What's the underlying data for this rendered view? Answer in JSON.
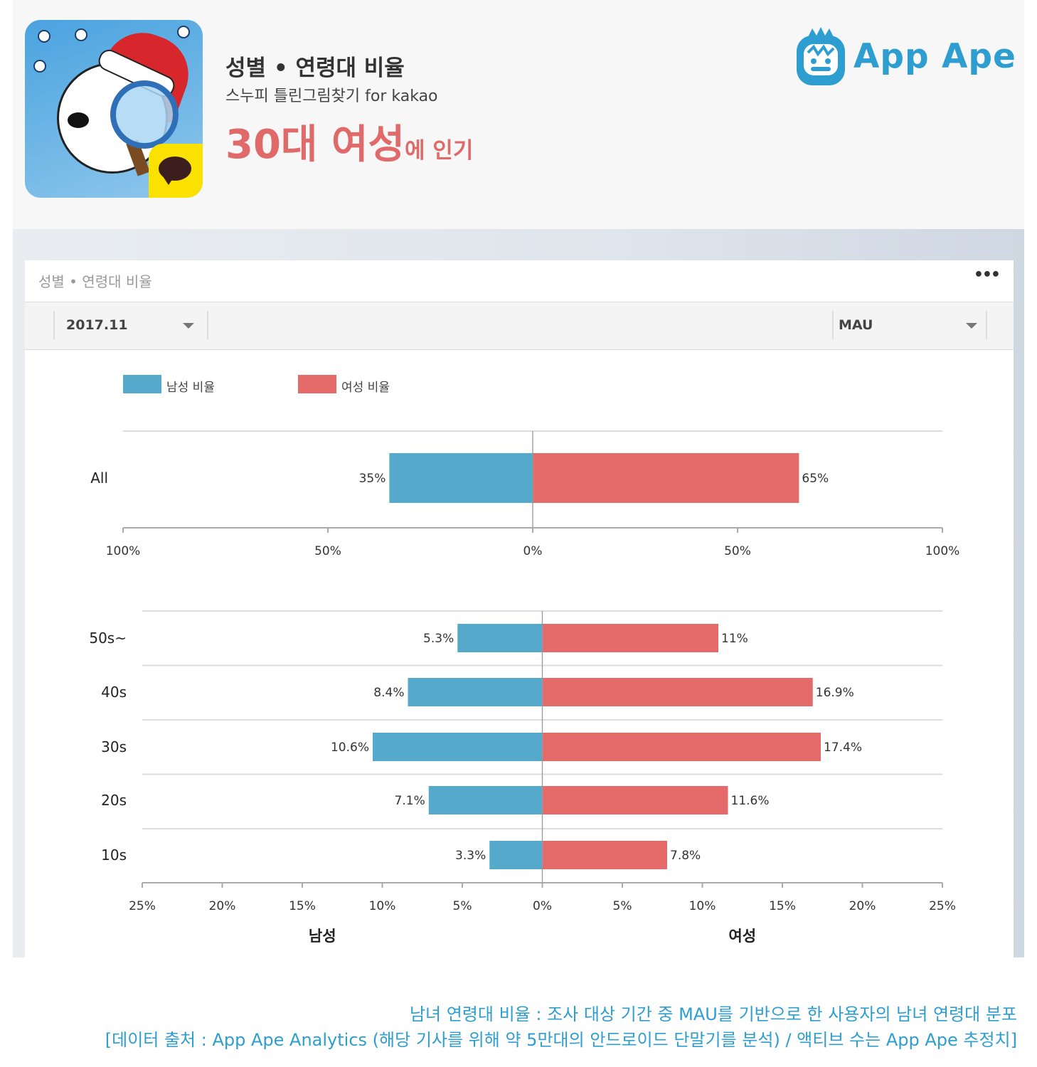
{
  "header": {
    "title": "성별 • 연령대 비율",
    "app_name": "스누피 틀린그림찾기 for kakao",
    "headline_main": "30대 여성",
    "headline_suffix": "에 인기",
    "logo_text": "App Ape"
  },
  "card": {
    "title": "성별 • 연령대 비율",
    "more": "•••",
    "period": "2017.11",
    "metric": "MAU"
  },
  "legend": {
    "male": "남성 비율",
    "female": "여성 비율"
  },
  "colors": {
    "male": "#55aacb",
    "female": "#e56b6b",
    "accent": "#2d9ecf",
    "headline": "#e06a6a"
  },
  "chart_data": [
    {
      "type": "bar",
      "orientation": "horizontal-diverging",
      "categories": [
        "All"
      ],
      "series": [
        {
          "name": "남성 비율",
          "values": [
            35
          ],
          "labels": [
            "35%"
          ]
        },
        {
          "name": "여성 비율",
          "values": [
            65
          ],
          "labels": [
            "65%"
          ]
        }
      ],
      "xlim": [
        -100,
        100
      ],
      "ticks": [
        -100,
        -50,
        0,
        50,
        100
      ],
      "tick_labels": [
        "100%",
        "50%",
        "0%",
        "50%",
        "100%"
      ],
      "legend": "top-left",
      "grid": true
    },
    {
      "type": "bar",
      "orientation": "horizontal-diverging",
      "categories": [
        "50s~",
        "40s",
        "30s",
        "20s",
        "10s"
      ],
      "series": [
        {
          "name": "남성 비율",
          "values": [
            5.3,
            8.4,
            10.6,
            7.1,
            3.3
          ],
          "labels": [
            "5.3%",
            "8.4%",
            "10.6%",
            "7.1%",
            "3.3%"
          ]
        },
        {
          "name": "여성 비율",
          "values": [
            11,
            16.9,
            17.4,
            11.6,
            7.8
          ],
          "labels": [
            "11%",
            "16.9%",
            "17.4%",
            "11.6%",
            "7.8%"
          ]
        }
      ],
      "xlim": [
        -25,
        25
      ],
      "ticks": [
        -25,
        -20,
        -15,
        -10,
        -5,
        0,
        5,
        10,
        15,
        20,
        25
      ],
      "tick_labels": [
        "25%",
        "20%",
        "15%",
        "10%",
        "5%",
        "0%",
        "5%",
        "10%",
        "15%",
        "20%",
        "25%"
      ],
      "xlabel_left": "남성",
      "xlabel_right": "여성",
      "grid": true
    }
  ],
  "footer": {
    "line1": "남녀 연령대 비율 : 조사 대상 기간 중 MAU를 기반으로 한 사용자의 남녀 연령대 분포",
    "line2": "[데이터 출처 : App Ape Analytics (해당 기사를 위해 약 5만대의 안드로이드 단말기를 분석) / 액티브 수는 App Ape 추정치]"
  }
}
